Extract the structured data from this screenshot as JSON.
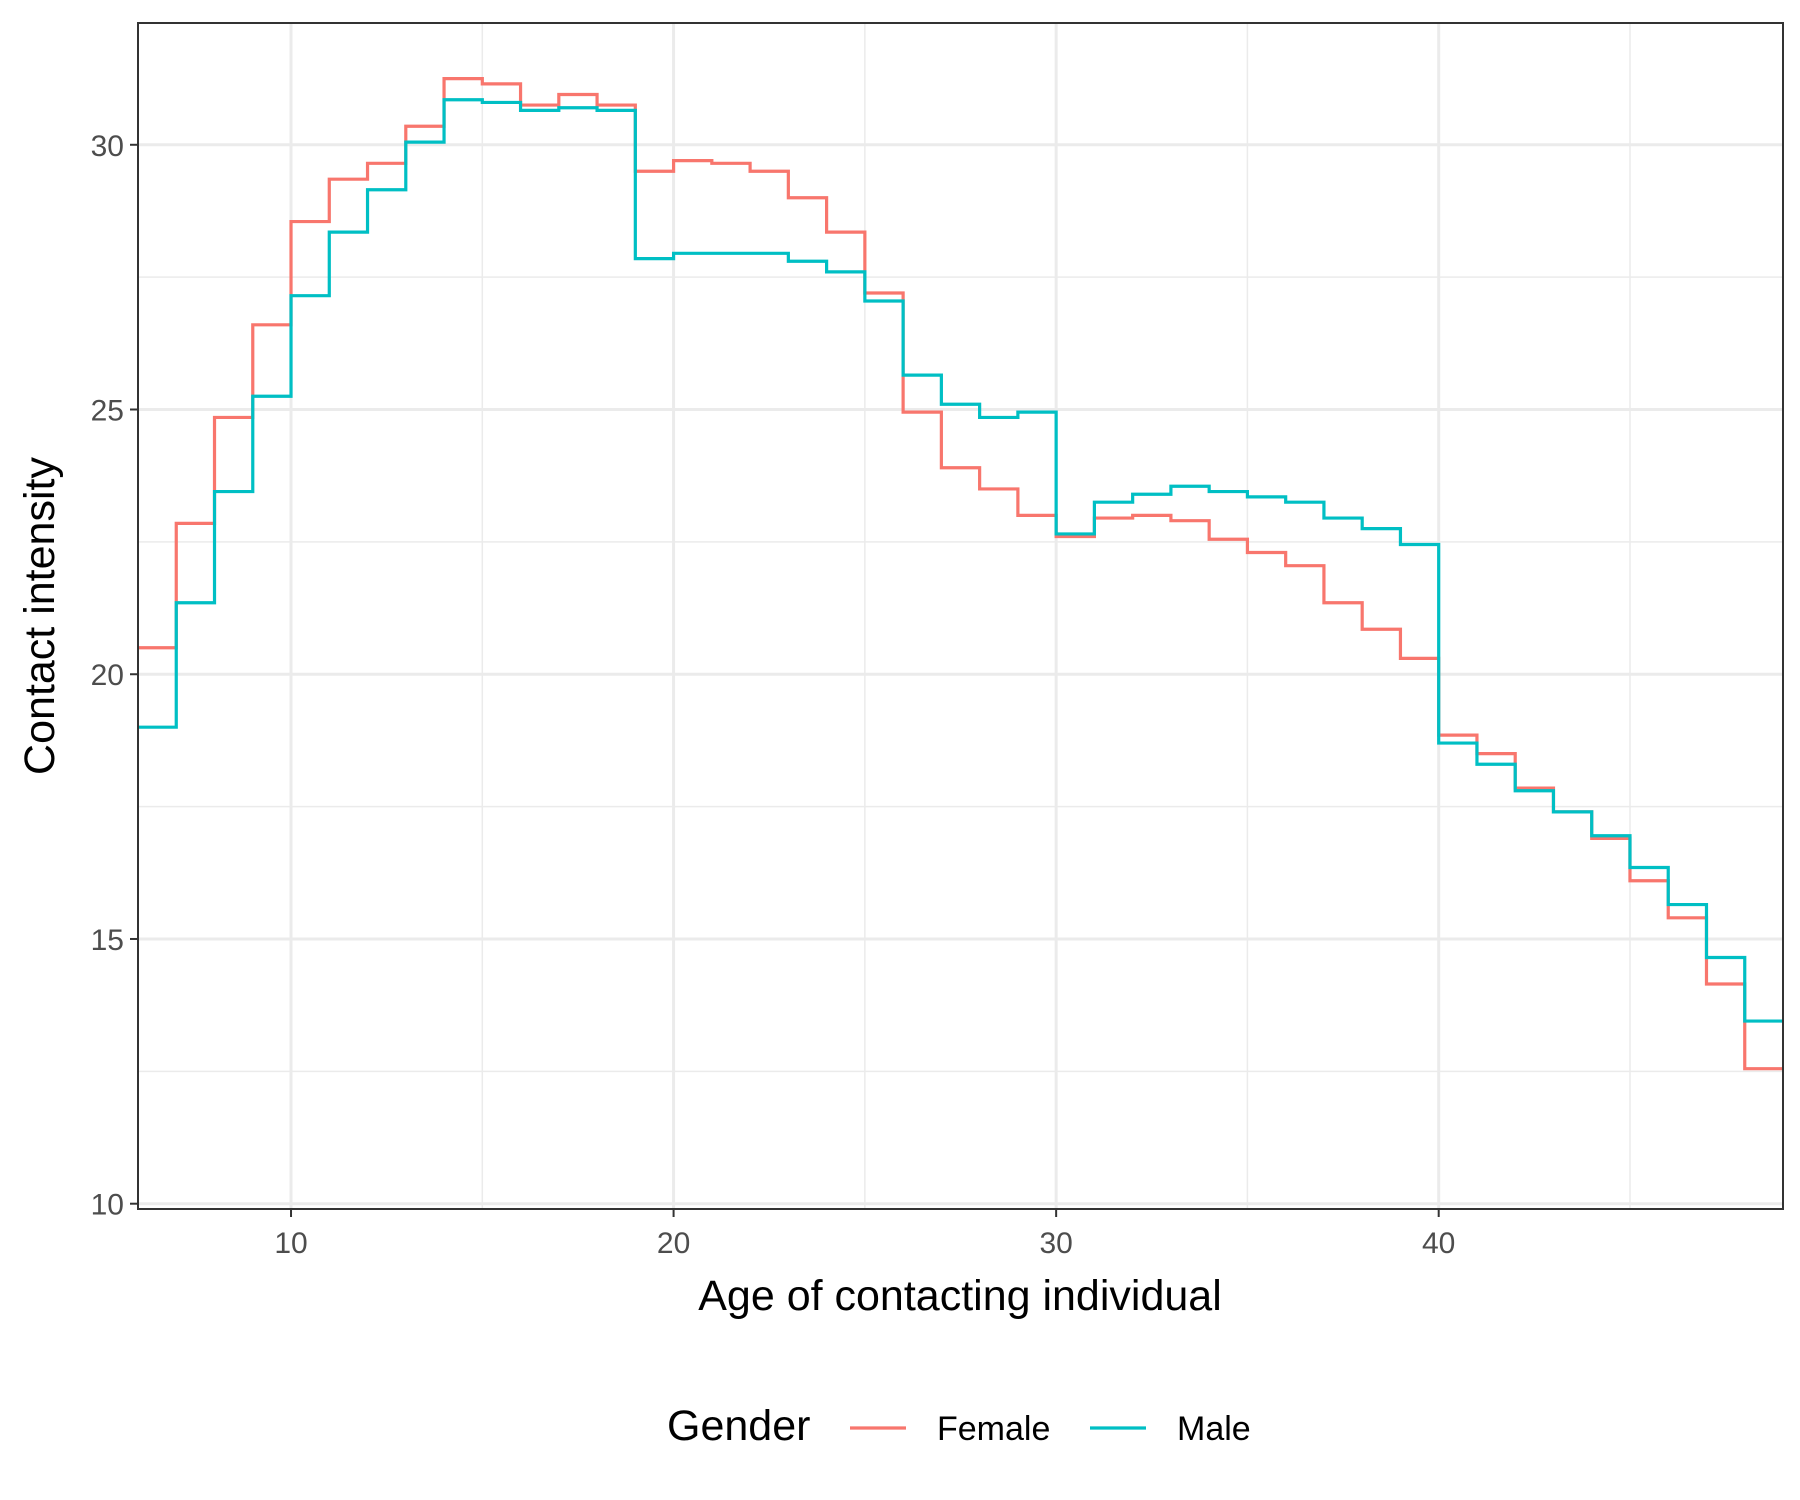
{
  "chart_data": {
    "type": "line",
    "step": true,
    "xlabel": "Age of contacting individual",
    "ylabel": "Contact intensity",
    "xlim": [
      6,
      49
    ],
    "ylim": [
      9.9,
      32.3
    ],
    "x_ticks": [
      10,
      20,
      30,
      40
    ],
    "y_ticks": [
      10,
      15,
      20,
      25,
      30
    ],
    "x_minor": [
      15,
      25,
      35,
      45
    ],
    "y_minor": [
      12.5,
      17.5,
      22.5,
      27.5
    ],
    "grid": true,
    "legend": {
      "title": "Gender",
      "position": "bottom"
    },
    "x": [
      6,
      7,
      8,
      9,
      10,
      11,
      12,
      13,
      14,
      15,
      16,
      17,
      18,
      19,
      20,
      21,
      22,
      23,
      24,
      25,
      26,
      27,
      28,
      29,
      30,
      31,
      32,
      33,
      34,
      35,
      36,
      37,
      38,
      39,
      40,
      41,
      42,
      43,
      44,
      45,
      46,
      47,
      48
    ],
    "series": [
      {
        "name": "Female",
        "color": "#F8766D",
        "values": [
          20.5,
          22.85,
          24.85,
          26.6,
          28.55,
          29.35,
          29.65,
          30.35,
          31.25,
          31.15,
          30.75,
          30.95,
          30.75,
          29.5,
          29.7,
          29.65,
          29.5,
          29.0,
          28.35,
          27.2,
          24.95,
          23.9,
          23.5,
          23.0,
          22.6,
          22.95,
          23.0,
          22.9,
          22.55,
          22.3,
          22.05,
          21.35,
          20.85,
          20.3,
          18.85,
          18.5,
          17.85,
          17.4,
          16.9,
          16.1,
          15.4,
          14.15,
          12.55
        ]
      },
      {
        "name": "Male",
        "color": "#00BFC4",
        "values": [
          19.0,
          21.35,
          23.45,
          25.25,
          27.15,
          28.35,
          29.15,
          30.05,
          30.85,
          30.8,
          30.65,
          30.7,
          30.65,
          27.85,
          27.95,
          27.95,
          27.95,
          27.8,
          27.6,
          27.05,
          25.65,
          25.1,
          24.85,
          24.95,
          22.65,
          23.25,
          23.4,
          23.55,
          23.45,
          23.35,
          23.25,
          22.95,
          22.75,
          22.45,
          18.7,
          18.3,
          17.8,
          17.4,
          16.95,
          16.35,
          15.65,
          14.65,
          13.45
        ]
      }
    ]
  }
}
